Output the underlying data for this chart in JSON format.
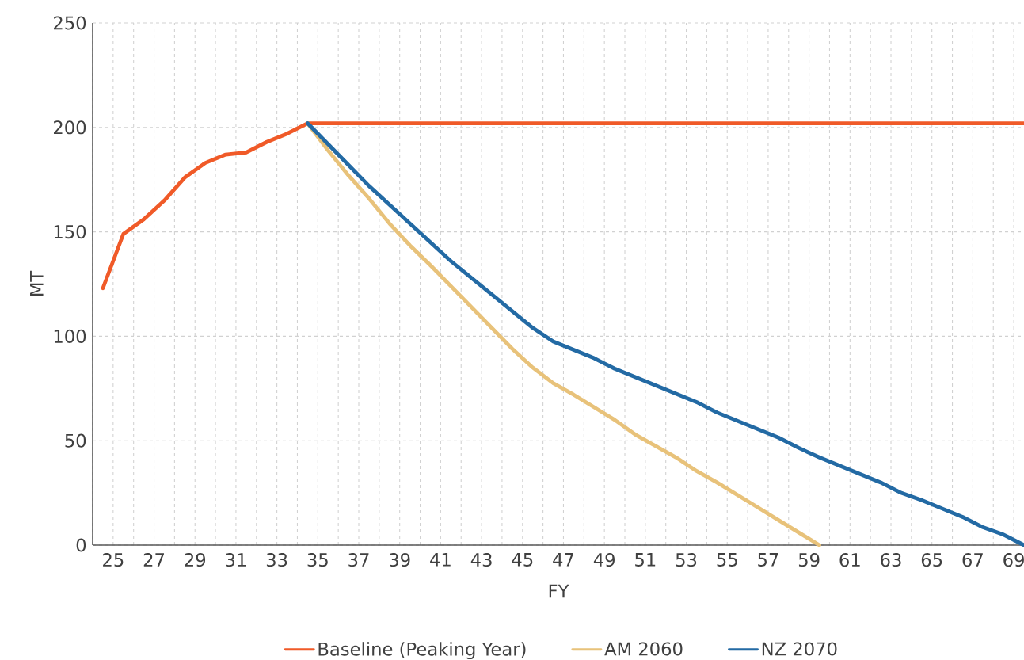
{
  "chart_data": {
    "type": "line",
    "xlabel": "FY",
    "ylabel": "MT",
    "xlim": [
      24,
      69.5
    ],
    "ylim": [
      0,
      250
    ],
    "xticks": [
      {
        "value": 24,
        "label": null
      },
      25,
      {
        "value": 26,
        "label": null
      },
      27,
      {
        "value": 28,
        "label": null
      },
      29,
      {
        "value": 30,
        "label": null
      },
      31,
      {
        "value": 32,
        "label": null
      },
      33,
      {
        "value": 34,
        "label": null
      },
      35,
      {
        "value": 36,
        "label": null
      },
      37,
      {
        "value": 38,
        "label": null
      },
      39,
      {
        "value": 40,
        "label": null
      },
      41,
      {
        "value": 42,
        "label": null
      },
      43,
      {
        "value": 44,
        "label": null
      },
      45,
      {
        "value": 46,
        "label": null
      },
      47,
      {
        "value": 48,
        "label": null
      },
      49,
      {
        "value": 50,
        "label": null
      },
      51,
      {
        "value": 52,
        "label": null
      },
      53,
      {
        "value": 54,
        "label": null
      },
      55,
      {
        "value": 56,
        "label": null
      },
      57,
      {
        "value": 58,
        "label": null
      },
      59,
      {
        "value": 60,
        "label": null
      },
      61,
      {
        "value": 62,
        "label": null
      },
      63,
      {
        "value": 64,
        "label": null
      },
      65,
      {
        "value": 66,
        "label": null
      },
      67,
      {
        "value": 68,
        "label": null
      },
      69
    ],
    "yticks": [
      0,
      50,
      100,
      150,
      200,
      250
    ],
    "grid": true,
    "legend": "bottom",
    "marker": "none",
    "line_style": "solid",
    "series": [
      {
        "name": "Baseline (Peaking Year)",
        "color": "#f05a28",
        "x": [
          24.5,
          25.5,
          26.5,
          27.5,
          28.5,
          29.5,
          30.5,
          31.5,
          32.5,
          33.5,
          34.5,
          35.5,
          36.5,
          37.5,
          38.5,
          39.5,
          40.5,
          41.5,
          42.5,
          43.5,
          44.5,
          45.5,
          46.5,
          47.5,
          48.5,
          49.5,
          50.5,
          51.5,
          52.5,
          53.5,
          54.5,
          55.5,
          56.5,
          57.5,
          58.5,
          59.5,
          60.5,
          61.5,
          62.5,
          63.5,
          64.5,
          65.5,
          66.5,
          67.5,
          68.5,
          69.5
        ],
        "values": [
          123,
          149,
          156,
          165,
          176,
          183,
          187,
          188,
          193,
          197,
          202,
          202,
          202,
          202,
          202,
          202,
          202,
          202,
          202,
          202,
          202,
          202,
          202,
          202,
          202,
          202,
          202,
          202,
          202,
          202,
          202,
          202,
          202,
          202,
          202,
          202,
          202,
          202,
          202,
          202,
          202,
          202,
          202,
          202,
          202,
          202
        ]
      },
      {
        "name": "AM 2060",
        "color": "#e8c27a",
        "x": [
          34.5,
          35.5,
          36.5,
          37.5,
          38.5,
          39.5,
          40.5,
          41.5,
          42.5,
          43.5,
          44.5,
          45.5,
          46.5,
          47.5,
          48.5,
          49.5,
          50.5,
          51.5,
          52.5,
          53.5,
          54.5,
          55.5,
          56.5,
          57.5,
          58.5,
          59.5
        ],
        "values": [
          202,
          189,
          177,
          166,
          154,
          143.5,
          134,
          124,
          114,
          104,
          94,
          85,
          77.5,
          72,
          66,
          60,
          53,
          47.5,
          42,
          35.5,
          30,
          24,
          18,
          12,
          6,
          0
        ]
      },
      {
        "name": "NZ 2070",
        "color": "#236aa4",
        "x": [
          34.5,
          35.5,
          36.5,
          37.5,
          38.5,
          39.5,
          40.5,
          41.5,
          42.5,
          43.5,
          44.5,
          45.5,
          46.5,
          47.5,
          48.5,
          49.5,
          50.5,
          51.5,
          52.5,
          53.5,
          54.5,
          55.5,
          56.5,
          57.5,
          58.5,
          59.5,
          60.5,
          61.5,
          62.5,
          63.5,
          64.5,
          65.5,
          66.5,
          67.5,
          68.5,
          69.5
        ],
        "values": [
          202,
          192,
          182,
          172,
          163,
          154,
          145,
          136,
          128,
          120,
          112,
          104,
          97.5,
          93.5,
          89.5,
          84.5,
          80.5,
          76.5,
          72.5,
          68.5,
          63.5,
          59.5,
          55.5,
          51.5,
          46.5,
          42,
          38,
          34,
          30,
          25,
          21.5,
          17.5,
          13.5,
          8.5,
          5,
          0
        ]
      }
    ]
  }
}
